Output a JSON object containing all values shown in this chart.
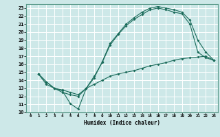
{
  "title": "",
  "xlabel": "Humidex (Indice chaleur)",
  "ylabel": "",
  "xlim": [
    -0.5,
    23.5
  ],
  "ylim": [
    10,
    23.5
  ],
  "xticks": [
    0,
    1,
    2,
    3,
    4,
    5,
    6,
    7,
    8,
    9,
    10,
    11,
    12,
    13,
    14,
    15,
    16,
    17,
    18,
    19,
    20,
    21,
    22,
    23
  ],
  "yticks": [
    10,
    11,
    12,
    13,
    14,
    15,
    16,
    17,
    18,
    19,
    20,
    21,
    22,
    23
  ],
  "bg_color": "#cde8e8",
  "grid_color": "#b0d4d4",
  "line_color": "#1a6b5a",
  "line1_x": [
    1,
    2,
    3,
    4,
    5,
    6,
    7,
    8,
    9,
    10,
    11,
    12,
    13,
    14,
    15,
    16,
    17,
    18,
    19,
    20,
    21,
    22,
    23
  ],
  "line1_y": [
    14.8,
    13.8,
    13.0,
    12.7,
    11.1,
    10.4,
    13.0,
    14.3,
    16.3,
    18.6,
    19.8,
    21.0,
    21.8,
    22.5,
    23.0,
    23.2,
    23.0,
    22.8,
    22.5,
    21.5,
    19.0,
    17.5,
    16.5
  ],
  "line2_x": [
    1,
    2,
    3,
    4,
    5,
    6,
    7,
    8,
    9,
    10,
    11,
    12,
    13,
    14,
    15,
    16,
    17,
    18,
    19,
    20,
    21,
    22,
    23
  ],
  "line2_y": [
    14.8,
    13.8,
    13.0,
    12.5,
    12.2,
    12.0,
    13.0,
    14.5,
    16.2,
    18.4,
    19.7,
    20.8,
    21.6,
    22.2,
    22.8,
    23.0,
    22.8,
    22.5,
    22.3,
    21.0,
    17.5,
    16.8,
    16.5
  ],
  "line3_x": [
    1,
    2,
    3,
    4,
    5,
    6,
    7,
    8,
    9,
    10,
    11,
    12,
    13,
    14,
    15,
    16,
    17,
    18,
    19,
    20,
    21,
    22,
    23
  ],
  "line3_y": [
    14.8,
    13.5,
    13.0,
    12.8,
    12.5,
    12.2,
    13.0,
    13.5,
    14.0,
    14.5,
    14.8,
    15.0,
    15.2,
    15.5,
    15.8,
    16.0,
    16.2,
    16.5,
    16.7,
    16.8,
    16.9,
    17.0,
    16.5
  ],
  "grid_white": "#ffffff",
  "spine_color": "#5a9a8a"
}
